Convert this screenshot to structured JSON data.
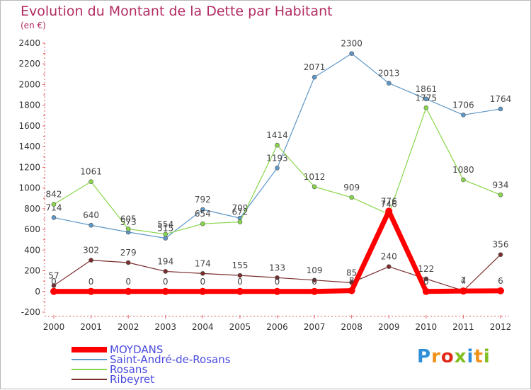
{
  "title": "Evolution du Montant de la Dette par Habitant",
  "subtitle": "(en €)",
  "logo": {
    "text": "Proxiti",
    "colors": [
      "#2e8fd8",
      "#f0921a",
      "#e02a1a",
      "#7fbf1f",
      "#2e8fd8",
      "#f0921a",
      "#7fbf1f"
    ]
  },
  "chart_data": {
    "type": "line",
    "x": [
      "2000",
      "2001",
      "2002",
      "2003",
      "2004",
      "2005",
      "2006",
      "2007",
      "2008",
      "2009",
      "2010",
      "2011",
      "2012"
    ],
    "ylim": [
      -200,
      2400
    ],
    "yticks": [
      -200,
      0,
      200,
      400,
      600,
      800,
      1000,
      1200,
      1400,
      1600,
      1800,
      2000,
      2200,
      2400
    ],
    "legend_position": "bottom-left",
    "series": [
      {
        "name": "MOYDANS",
        "color": "#ff0000",
        "values": [
          0,
          0,
          0,
          0,
          0,
          0,
          0,
          0,
          8,
          776,
          0,
          4,
          6
        ]
      },
      {
        "name": "Saint-André-de-Rosans",
        "color": "#5e97c8",
        "values": [
          714,
          640,
          573,
          515,
          792,
          709,
          1193,
          2071,
          2300,
          2013,
          1861,
          1706,
          1764
        ]
      },
      {
        "name": "Rosans",
        "color": "#88d64a",
        "values": [
          842,
          1061,
          605,
          554,
          654,
          672,
          1414,
          1012,
          909,
          746,
          1775,
          1080,
          934
        ]
      },
      {
        "name": "Ribeyret",
        "color": "#7a2d2d",
        "values": [
          57,
          302,
          279,
          194,
          174,
          155,
          133,
          109,
          85,
          240,
          122,
          7,
          356
        ]
      }
    ]
  }
}
